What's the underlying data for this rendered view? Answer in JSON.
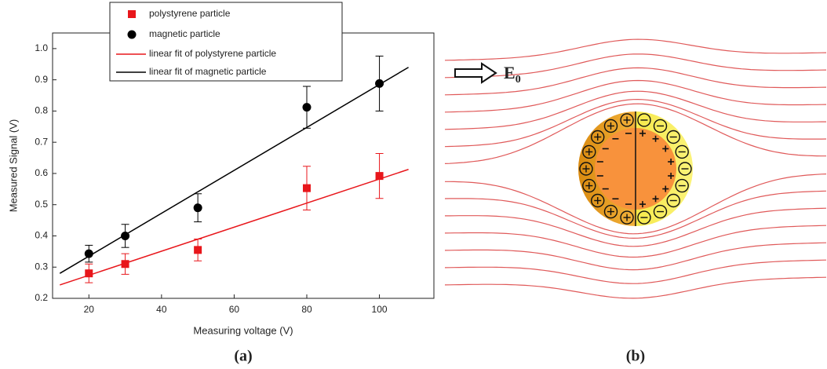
{
  "chart_data": {
    "type": "scatter",
    "x_label": "Measuring voltage (V)",
    "y_label": "Measured Signal (V)",
    "x": [
      20,
      30,
      50,
      80,
      100
    ],
    "series": [
      {
        "name": "polystyrene particle",
        "color": "#e8161b",
        "marker": "square",
        "values": [
          0.28,
          0.31,
          0.355,
          0.553,
          0.592
        ],
        "errors": [
          0.03,
          0.033,
          0.035,
          0.07,
          0.072
        ]
      },
      {
        "name": "magnetic particle",
        "color": "#000000",
        "marker": "circle",
        "values": [
          0.343,
          0.4,
          0.49,
          0.812,
          0.888
        ],
        "errors": [
          0.027,
          0.037,
          0.045,
          0.067,
          0.088
        ]
      }
    ],
    "fits": [
      {
        "name": "linear fit of polystyrene particle",
        "color": "#e8161b",
        "x": [
          12,
          108
        ],
        "values": [
          0.243,
          0.613
        ]
      },
      {
        "name": "linear fit of magnetic particle",
        "color": "#000000",
        "x": [
          12,
          108
        ],
        "values": [
          0.28,
          0.94
        ]
      }
    ],
    "xlim": [
      10,
      115
    ],
    "xticks": [
      20,
      40,
      60,
      80,
      100
    ],
    "ylim": [
      0.2,
      1.05
    ],
    "yticks": [
      0.2,
      0.3,
      0.4,
      0.5,
      0.6,
      0.7,
      0.8,
      0.9,
      {
        "value": 1,
        "label": "1.0"
      }
    ],
    "panel_label": "(a)"
  },
  "diagram": {
    "field_label": "E",
    "field_subscript": "0",
    "panel_label": "(b)"
  }
}
